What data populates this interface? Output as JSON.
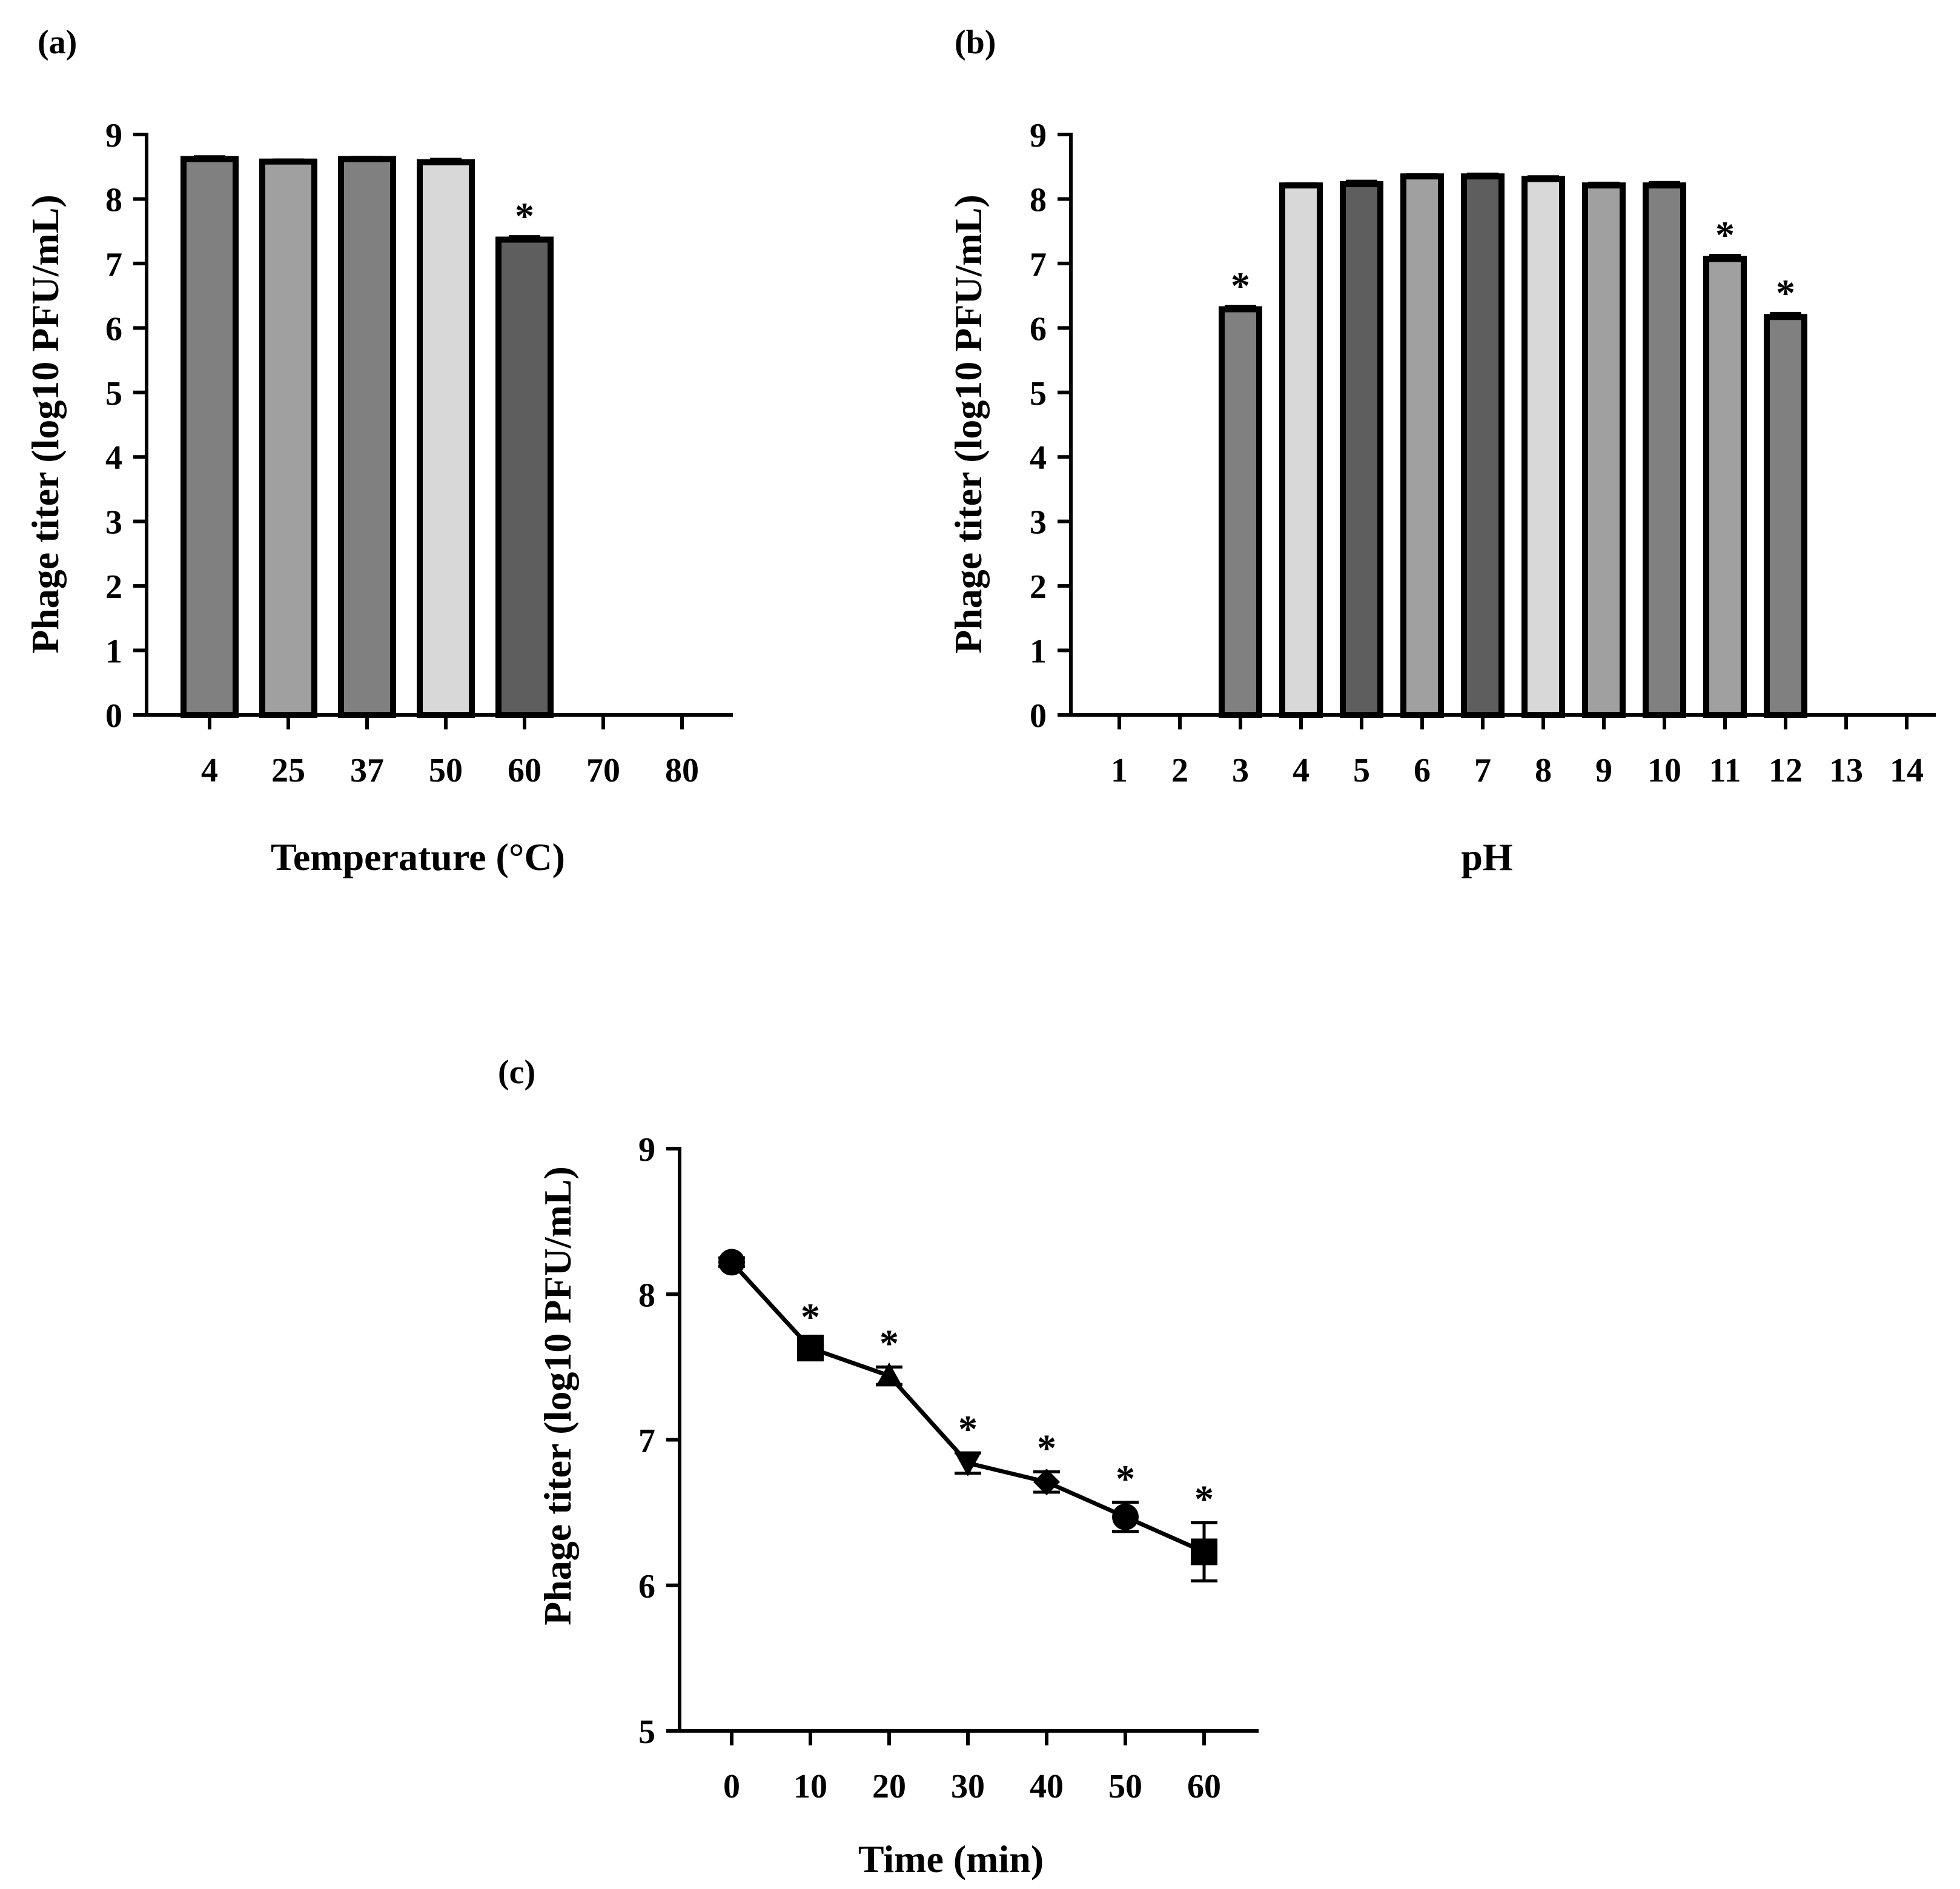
{
  "chart_data": [
    {
      "panel": "(a)",
      "type": "bar",
      "xlabel": "Temperature (°C)",
      "ylabel": "Phage titer (log10 PFU/mL)",
      "ylim": [
        0,
        9
      ],
      "yticks": [
        "0",
        "1",
        "2",
        "3",
        "4",
        "5",
        "6",
        "7",
        "8",
        "9"
      ],
      "categories": [
        "4",
        "25",
        "37",
        "50",
        "60",
        "70",
        "80"
      ],
      "values": [
        8.62,
        8.58,
        8.62,
        8.57,
        7.37,
        0,
        0
      ],
      "errors": [
        0.04,
        0.03,
        0.03,
        0.05,
        0.05,
        0,
        0
      ],
      "significant": [
        false,
        false,
        false,
        false,
        true,
        false,
        false
      ],
      "colors": [
        "#808080",
        "#a0a0a0",
        "#808080",
        "#d8d8d8",
        "#5e5e5e",
        "#808080",
        "#808080"
      ],
      "marker": "*"
    },
    {
      "panel": "(b)",
      "type": "bar",
      "xlabel": "pH",
      "ylabel": "Phage titer (log10 PFU/mL)",
      "ylim": [
        0,
        9
      ],
      "yticks": [
        "0",
        "1",
        "2",
        "3",
        "4",
        "5",
        "6",
        "7",
        "8",
        "9"
      ],
      "categories": [
        "1",
        "2",
        "3",
        "4",
        "5",
        "6",
        "7",
        "8",
        "9",
        "10",
        "11",
        "12",
        "13",
        "14"
      ],
      "values": [
        0,
        0,
        6.29,
        8.21,
        8.23,
        8.35,
        8.35,
        8.31,
        8.21,
        8.21,
        7.07,
        6.17,
        0,
        0
      ],
      "errors": [
        0,
        0,
        0.05,
        0.03,
        0.05,
        0.03,
        0.04,
        0.04,
        0.04,
        0.05,
        0.06,
        0.06,
        0,
        0
      ],
      "significant": [
        false,
        false,
        true,
        false,
        false,
        false,
        false,
        false,
        false,
        false,
        true,
        true,
        false,
        false
      ],
      "colors": [
        "#808080",
        "#808080",
        "#808080",
        "#d8d8d8",
        "#5e5e5e",
        "#a0a0a0",
        "#5e5e5e",
        "#d8d8d8",
        "#a0a0a0",
        "#808080",
        "#a0a0a0",
        "#808080",
        "#808080",
        "#808080"
      ],
      "marker": "*"
    },
    {
      "panel": "(c)",
      "type": "line",
      "xlabel": "Time (min)",
      "ylabel": "Phage titer (log10 PFU/mL)",
      "ylim": [
        5,
        9
      ],
      "yticks": [
        "5",
        "6",
        "7",
        "8",
        "9"
      ],
      "x": [
        0,
        10,
        20,
        30,
        40,
        50,
        60
      ],
      "xticks": [
        "0",
        "10",
        "20",
        "30",
        "40",
        "50",
        "60"
      ],
      "values": [
        8.22,
        7.63,
        7.44,
        6.84,
        6.71,
        6.47,
        6.23
      ],
      "errors": [
        0.03,
        0.05,
        0.06,
        0.07,
        0.07,
        0.1,
        0.2
      ],
      "markers": [
        "circle",
        "square",
        "triangle-up",
        "triangle-down",
        "diamond",
        "circle",
        "square"
      ],
      "significant": [
        false,
        true,
        true,
        true,
        true,
        true,
        true
      ],
      "marker": "*"
    }
  ]
}
